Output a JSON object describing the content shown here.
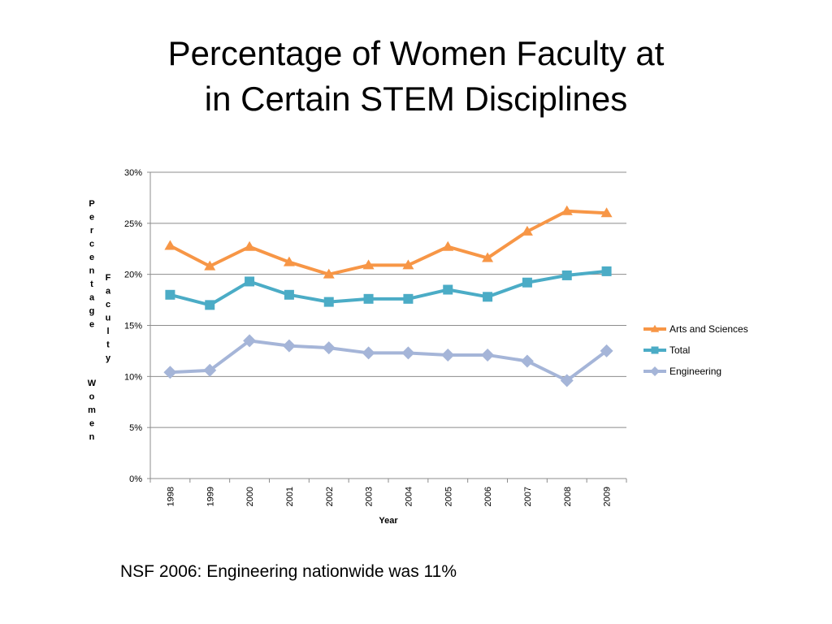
{
  "slide": {
    "title_line1": "Percentage of Women Faculty at",
    "title_line2": "in Certain STEM Disciplines",
    "footnote": "NSF 2006: Engineering nationwide was 11%"
  },
  "chart_data": {
    "type": "line",
    "title": "",
    "xlabel": "Year",
    "ylabel_parts": [
      "Percentage",
      "Women",
      "Faculty"
    ],
    "x": [
      "1998",
      "1999",
      "2000",
      "2001",
      "2002",
      "2003",
      "2004",
      "2005",
      "2006",
      "2007",
      "2008",
      "2009"
    ],
    "ylim": [
      0,
      30
    ],
    "y_ticks": [
      0,
      5,
      10,
      15,
      20,
      25,
      30
    ],
    "y_tick_labels": [
      "0%",
      "5%",
      "10%",
      "15%",
      "20%",
      "25%",
      "30%"
    ],
    "grid": true,
    "legend_position": "right",
    "series": [
      {
        "name": "Arts and Sciences",
        "color": "#f79646",
        "marker": "triangle",
        "values": [
          22.8,
          20.8,
          22.7,
          21.2,
          20.0,
          20.9,
          20.9,
          22.7,
          21.6,
          24.2,
          26.2,
          26.0
        ]
      },
      {
        "name": "Total",
        "color": "#4bacc6",
        "marker": "square",
        "values": [
          18.0,
          17.0,
          19.3,
          18.0,
          17.3,
          17.6,
          17.6,
          18.5,
          17.8,
          19.2,
          19.9,
          20.3
        ]
      },
      {
        "name": "Engineering",
        "color": "#a5b5d8",
        "marker": "diamond",
        "values": [
          10.4,
          10.6,
          13.5,
          13.0,
          12.8,
          12.3,
          12.3,
          12.1,
          12.1,
          11.5,
          9.6,
          12.5
        ]
      }
    ]
  }
}
